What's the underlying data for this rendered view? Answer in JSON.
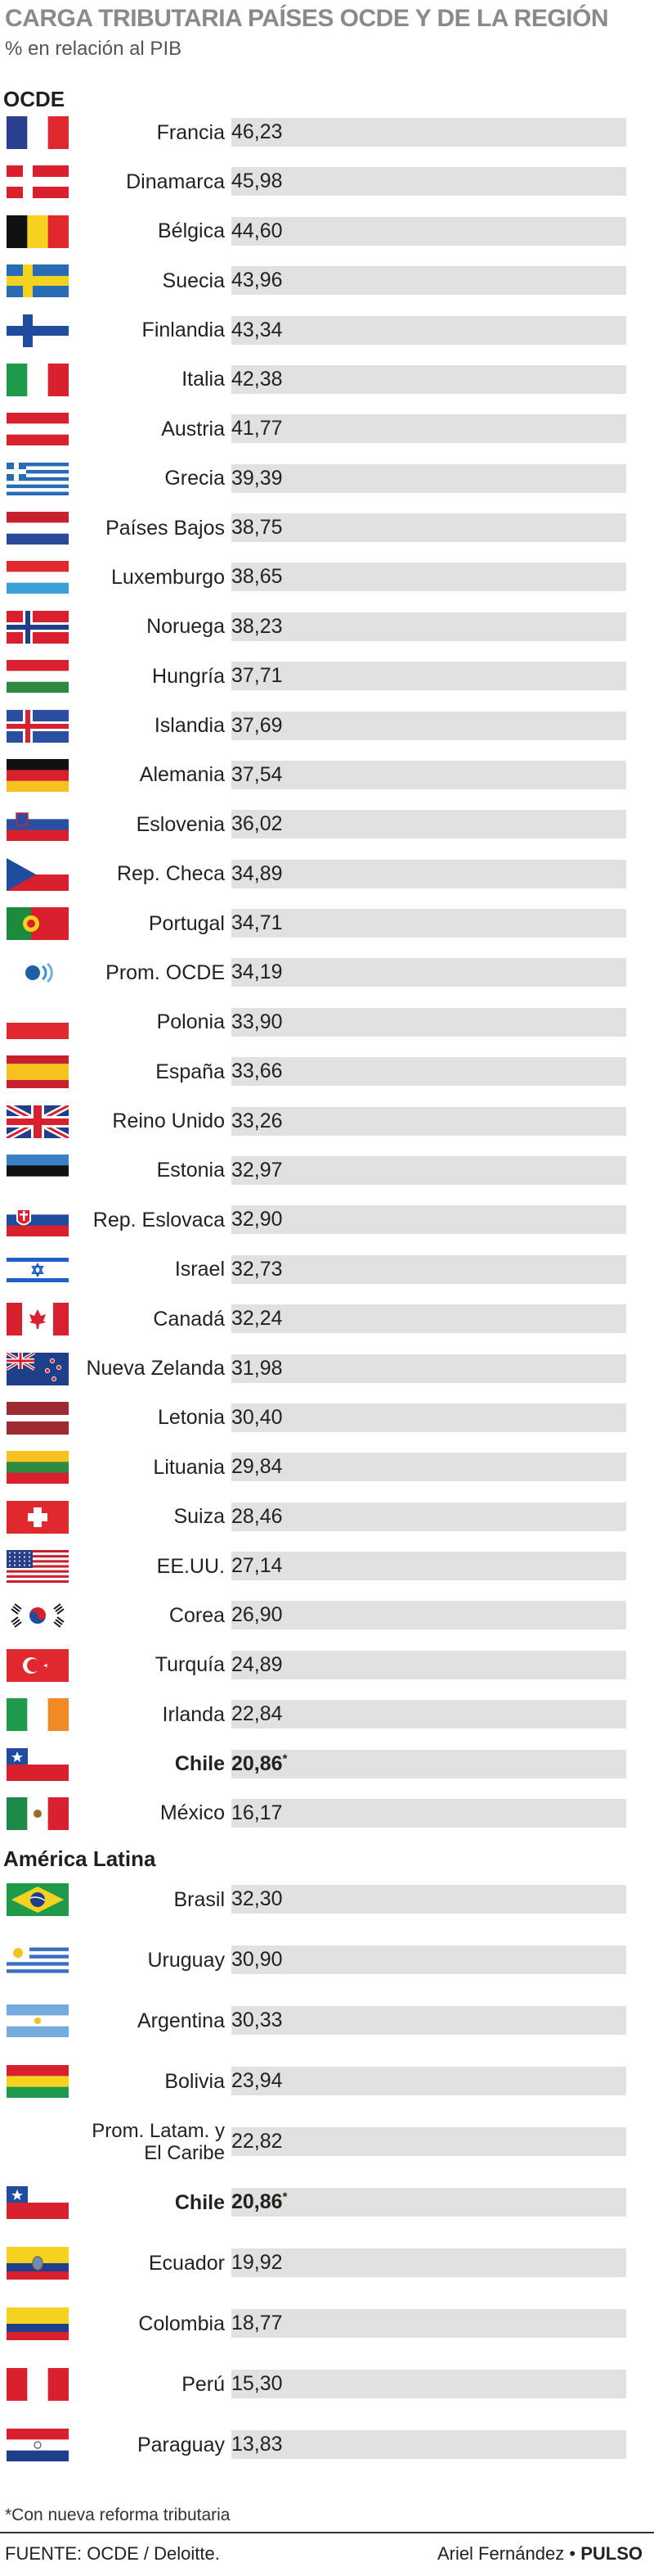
{
  "header": {
    "title": "CARGA TRIBUTARIA PAÍSES OCDE Y DE LA REGIÓN",
    "subtitle": "% en relación al PIB"
  },
  "chart_data": [
    {
      "type": "bar",
      "orientation": "horizontal",
      "section": "OCDE",
      "categories": [
        "Francia",
        "Dinamarca",
        "Bélgica",
        "Suecia",
        "Finlandia",
        "Italia",
        "Austria",
        "Grecia",
        "Países Bajos",
        "Luxemburgo",
        "Noruega",
        "Hungría",
        "Islandia",
        "Alemania",
        "Eslovenia",
        "Rep. Checa",
        "Portugal",
        "Prom. OCDE",
        "Polonia",
        "España",
        "Reino Unido",
        "Estonia",
        "Rep. Eslovaca",
        "Israel",
        "Canadá",
        "Nueva Zelanda",
        "Letonia",
        "Lituania",
        "Suiza",
        "EE.UU.",
        "Corea",
        "Turquía",
        "Irlanda",
        "Chile",
        "México"
      ],
      "values": [
        46.23,
        45.98,
        44.6,
        43.96,
        43.34,
        42.38,
        41.77,
        39.39,
        38.75,
        38.65,
        38.23,
        37.71,
        37.69,
        37.54,
        36.02,
        34.89,
        34.71,
        34.19,
        33.9,
        33.66,
        33.26,
        32.97,
        32.9,
        32.73,
        32.24,
        31.98,
        30.4,
        29.84,
        28.46,
        27.14,
        26.9,
        24.89,
        22.84,
        20.86,
        16.17
      ],
      "value_labels": [
        "46,23",
        "45,98",
        "44,60",
        "43,96",
        "43,34",
        "42,38",
        "41,77",
        "39,39",
        "38,75",
        "38,65",
        "38,23",
        "37,71",
        "37,69",
        "37,54",
        "36,02",
        "34,89",
        "34,71",
        "34,19",
        "33,90",
        "33,66",
        "33,26",
        "32,97",
        "32,90",
        "32,73",
        "32,24",
        "31,98",
        "30,40",
        "29,84",
        "28,46",
        "27,14",
        "26,90",
        "24,89",
        "22,84",
        "20,86",
        "16,17"
      ],
      "flags": [
        "france",
        "denmark",
        "belgium",
        "sweden",
        "finland",
        "italy",
        "austria",
        "greece",
        "netherlands",
        "luxembourg",
        "norway",
        "hungary",
        "iceland",
        "germany",
        "slovenia",
        "czechia",
        "portugal",
        "oecd",
        "poland",
        "spain",
        "uk",
        "estonia",
        "slovakia",
        "israel",
        "canada",
        "newzealand",
        "latvia",
        "lithuania",
        "switzerland",
        "usa",
        "korea",
        "turkey",
        "ireland",
        "chile",
        "mexico"
      ],
      "highlight": {
        "Prom. OCDE": "average",
        "Chile": "chile"
      },
      "asterisk": [
        "Chile"
      ],
      "xlim": [
        0,
        80
      ]
    },
    {
      "type": "bar",
      "orientation": "horizontal",
      "section": "América Latina",
      "categories": [
        "Brasil",
        "Uruguay",
        "Argentina",
        "Bolivia",
        "Prom. Latam. y El Caribe",
        "Chile",
        "Ecuador",
        "Colombia",
        "Perú",
        "Paraguay"
      ],
      "values": [
        32.3,
        30.9,
        30.33,
        23.94,
        22.82,
        20.86,
        19.92,
        18.77,
        15.3,
        13.83
      ],
      "value_labels": [
        "32,30",
        "30,90",
        "30,33",
        "23,94",
        "22,82",
        "20,86",
        "19,92",
        "18,77",
        "15,30",
        "13,83"
      ],
      "flags": [
        "brazil",
        "uruguay",
        "argentina",
        "bolivia",
        "",
        "chile",
        "ecuador",
        "colombia",
        "peru",
        "paraguay"
      ],
      "highlight": {
        "Prom. Latam. y El Caribe": "average",
        "Chile": "chile"
      },
      "asterisk": [
        "Chile"
      ],
      "xlim": [
        0,
        80
      ]
    }
  ],
  "colors": {
    "bar": "#d5d86c",
    "average": "#a8a8a8",
    "chile": "#c8126b",
    "track": "#e1e1df"
  },
  "footer": {
    "footnote": "*Con nueva reforma tributaria",
    "source": "FUENTE: OCDE / Deloitte.",
    "author": "Ariel Fernández",
    "separator": "•",
    "brand": "PULSO"
  }
}
